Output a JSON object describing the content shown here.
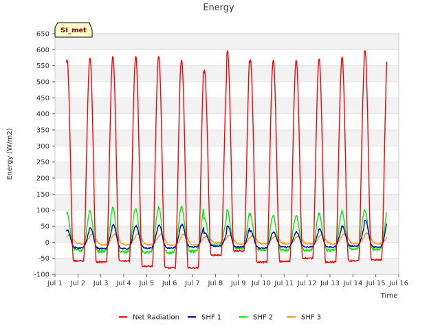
{
  "chart_data": {
    "type": "line",
    "title": "Energy",
    "xlabel": "Time",
    "ylabel": "Energy (W/m2)",
    "site_badge": "SI_met",
    "xlim": [
      1,
      16
    ],
    "ylim": [
      -100,
      650
    ],
    "x_ticks": [
      {
        "value": 1,
        "label": "Jul 1"
      },
      {
        "value": 2,
        "label": "Jul 2"
      },
      {
        "value": 3,
        "label": "Jul 3"
      },
      {
        "value": 4,
        "label": "Jul 4"
      },
      {
        "value": 5,
        "label": "Jul 5"
      },
      {
        "value": 6,
        "label": "Jul 6"
      },
      {
        "value": 7,
        "label": "Jul 7"
      },
      {
        "value": 8,
        "label": "Jul 8"
      },
      {
        "value": 9,
        "label": "Jul 9"
      },
      {
        "value": 10,
        "label": "Jul 10"
      },
      {
        "value": 11,
        "label": "Jul 11"
      },
      {
        "value": 12,
        "label": "Jul 12"
      },
      {
        "value": 13,
        "label": "Jul 13"
      },
      {
        "value": 14,
        "label": "Jul 14"
      },
      {
        "value": 15,
        "label": "Jul 15"
      },
      {
        "value": 16,
        "label": "Jul 16"
      }
    ],
    "y_ticks": [
      -100,
      -50,
      0,
      50,
      100,
      150,
      200,
      250,
      300,
      350,
      400,
      450,
      500,
      550,
      600,
      650
    ],
    "series": [
      {
        "name": "Net Radiation",
        "color": "#ff0000",
        "daily_peak": [
          570,
          575,
          580,
          580,
          580,
          568,
          535,
          598,
          570,
          568,
          568,
          572,
          578,
          598
        ],
        "night_min": [
          -58,
          -62,
          -58,
          -75,
          -80,
          -80,
          -40,
          -28,
          -62,
          -60,
          -50,
          -62,
          -58,
          -55
        ]
      },
      {
        "name": "SHF 1",
        "color": "#0000cc",
        "daily_peak": [
          38,
          45,
          55,
          50,
          55,
          55,
          30,
          50,
          35,
          32,
          32,
          42,
          50,
          68
        ],
        "night_min": [
          -18,
          -20,
          -20,
          -18,
          -18,
          -15,
          -12,
          -15,
          -18,
          -15,
          -15,
          -15,
          -12,
          -15
        ]
      },
      {
        "name": "SHF 2",
        "color": "#00ee00",
        "daily_peak": [
          92,
          98,
          108,
          105,
          110,
          110,
          75,
          100,
          85,
          82,
          85,
          90,
          98,
          100
        ],
        "night_min": [
          -25,
          -28,
          -30,
          -32,
          -32,
          -28,
          -10,
          -20,
          -25,
          -25,
          -25,
          -25,
          -20,
          -22
        ]
      },
      {
        "name": "SHF 3",
        "color": "#ff9900",
        "daily_peak": [
          22,
          25,
          25,
          25,
          25,
          25,
          18,
          22,
          20,
          18,
          18,
          22,
          25,
          28
        ],
        "night_min": [
          -5,
          -8,
          -8,
          -8,
          -10,
          -8,
          -3,
          -5,
          -5,
          -5,
          -5,
          -5,
          -5,
          -5
        ]
      }
    ],
    "legend_position": "bottom-center"
  }
}
